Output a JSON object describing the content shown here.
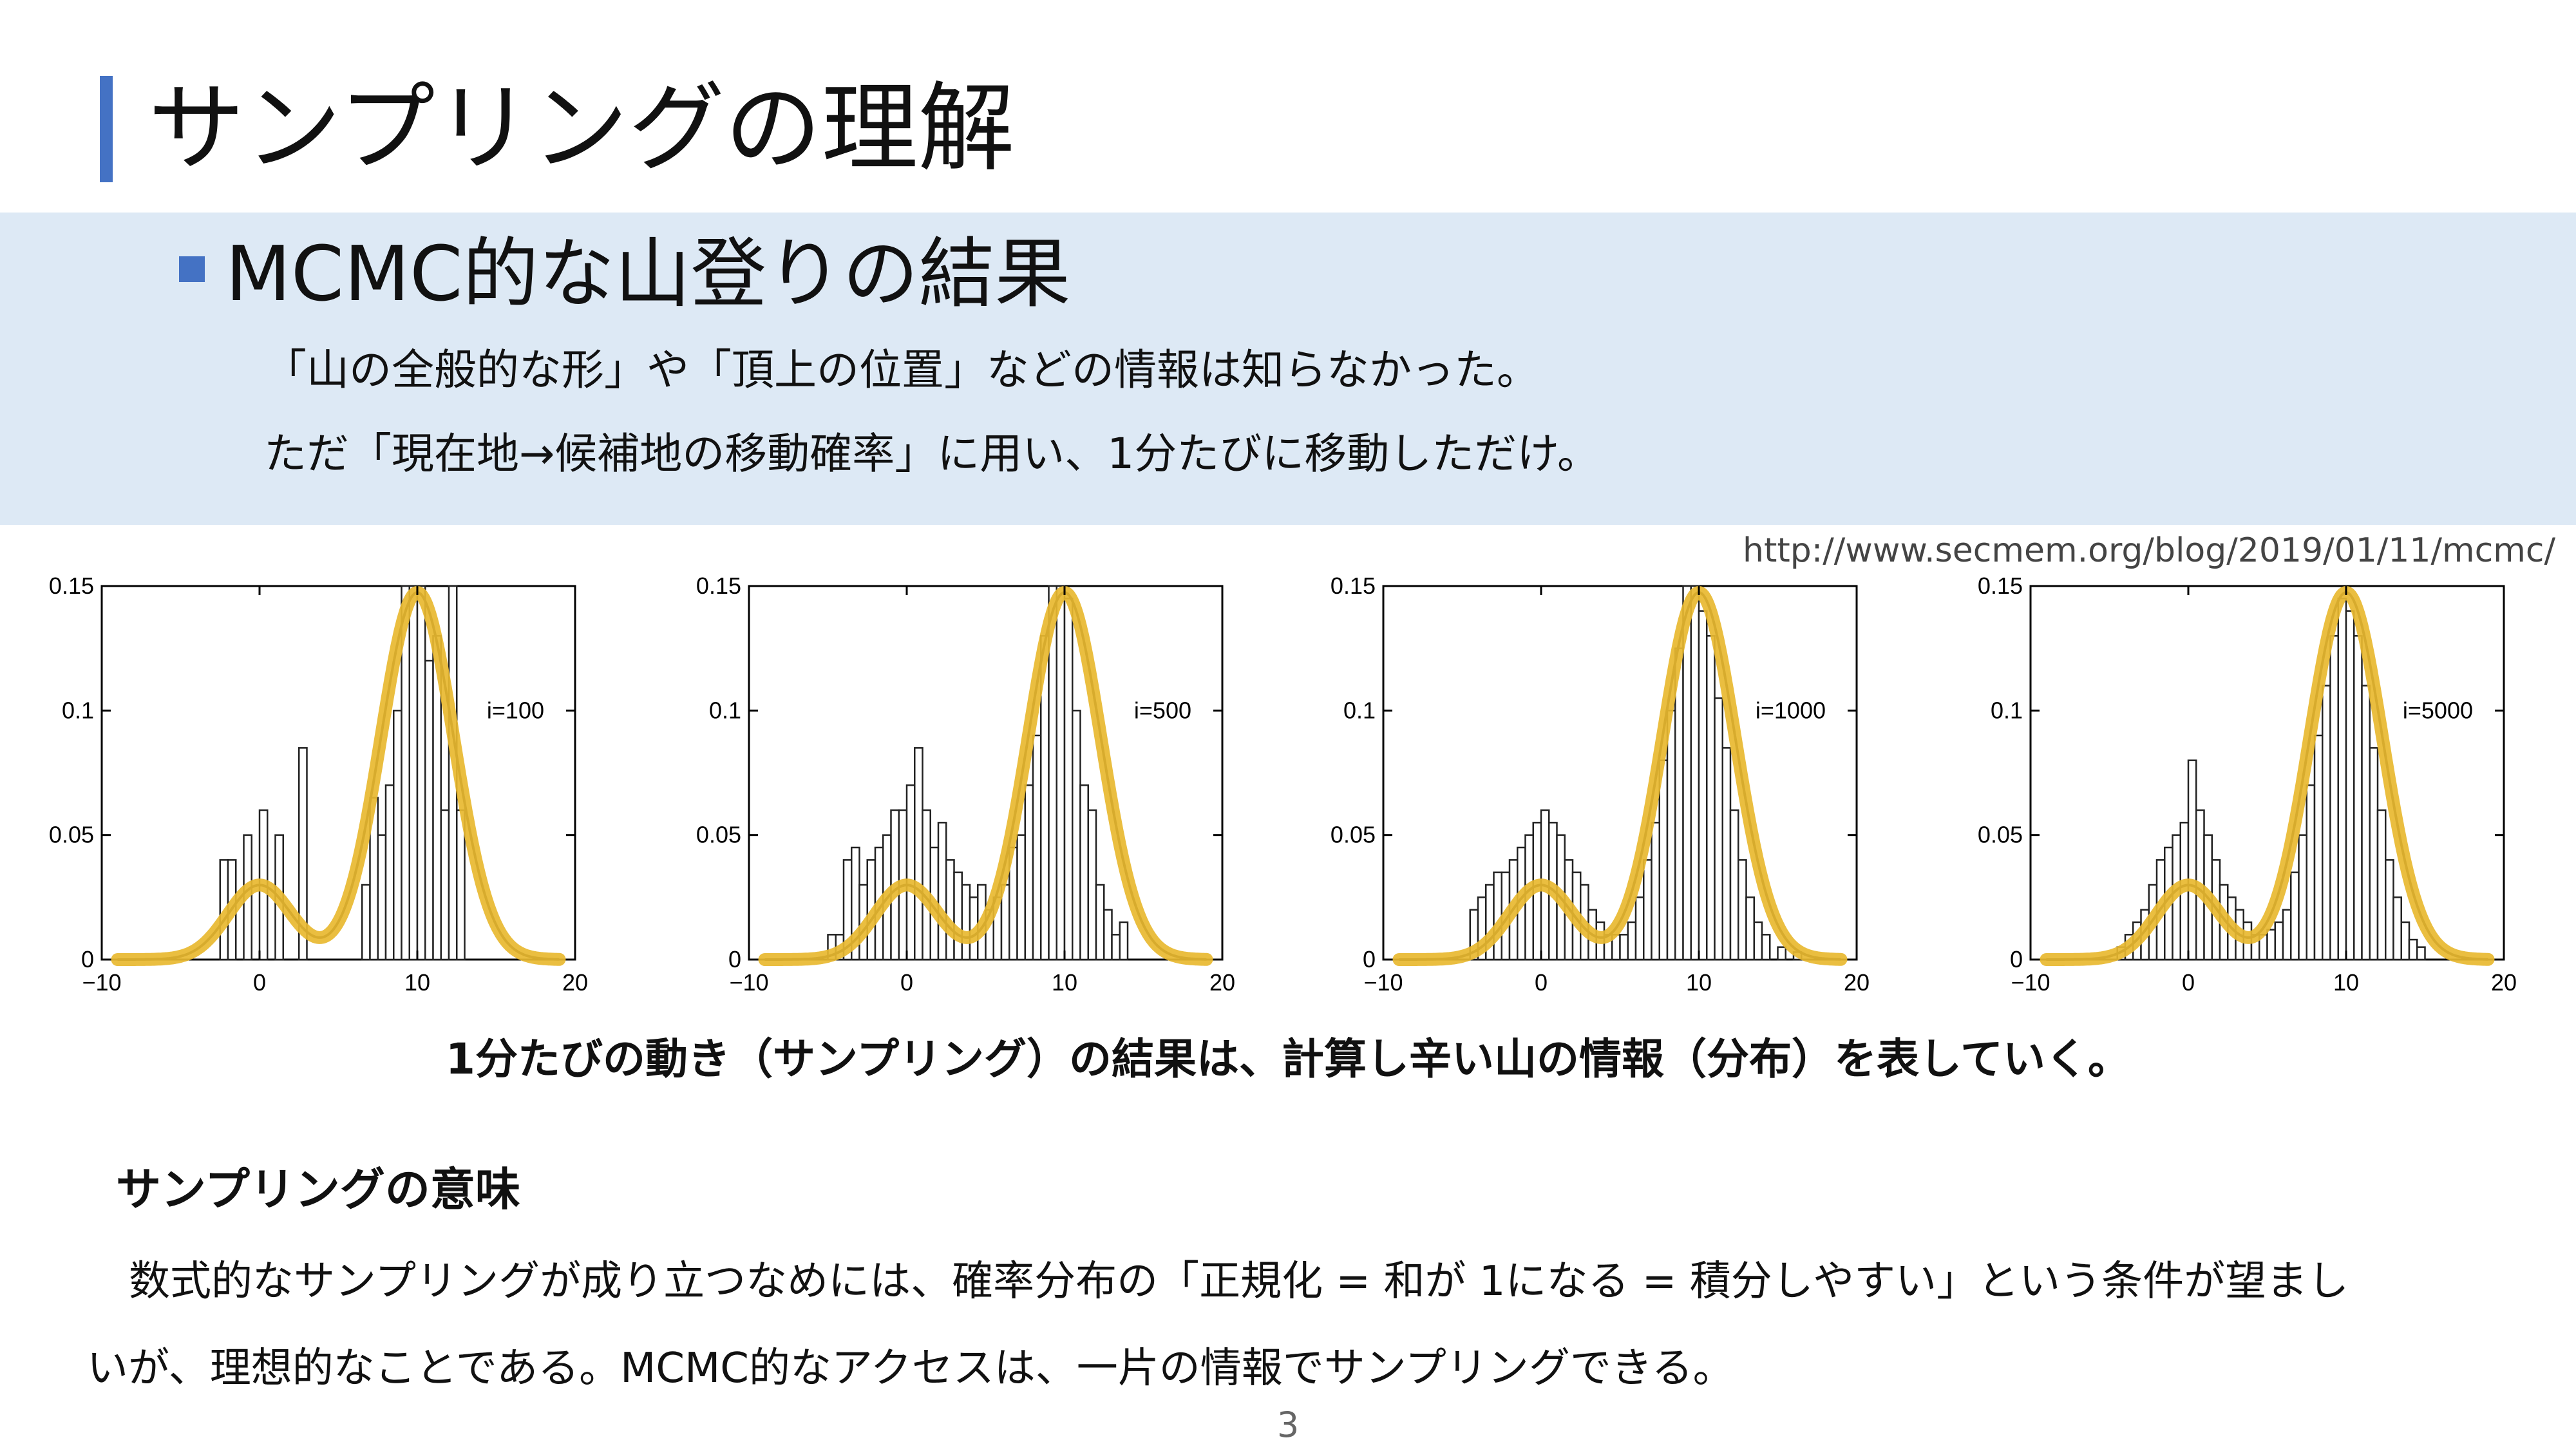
{
  "slide": {
    "title": "サンプリングの理解",
    "bullet_heading": "MCMC的な山登りの結果",
    "lines": [
      "「山の全般的な形」や「頂上の位置」などの情報は知らなかった。",
      "ただ「現在地→候補地の移動確率」に用い、1分たびに移動しただけ。"
    ],
    "source_url": "http://www.secmem.org/blog/2019/01/11/mcmc/",
    "caption": "1分たびの動き（サンプリング）の結果は、計算し辛い山の情報（分布）を表していく。",
    "section_heading": "サンプリングの意味",
    "paragraph_lines": [
      "数式的なサンプリングが成り立つなめには、確率分布の「正規化 = 和が 1になる = 積分しやすい」という条件が望まし",
      "いが、理想的なことである。MCMC的なアクセスは、一片の情報でサンプリングできる。"
    ],
    "page_number": "3",
    "accent_color": "#4472c4",
    "band_color": "#dde9f5"
  },
  "chart_data": [
    {
      "type": "bar",
      "annotation": "i=100",
      "xlim": [
        -10,
        20
      ],
      "ylim": [
        0,
        0.15
      ],
      "xticks": [
        -10,
        0,
        10,
        20
      ],
      "yticks": [
        0,
        0.05,
        0.1,
        0.15
      ],
      "xtick_labels": [
        "−10",
        "0",
        "10",
        "20"
      ],
      "ytick_labels": [
        "0",
        "0.05",
        "0.1",
        "0.15"
      ],
      "bin_width": 0.5,
      "bins": [
        [
          -2.5,
          0.04
        ],
        [
          -2,
          0.04
        ],
        [
          -1,
          0.05
        ],
        [
          0,
          0.06
        ],
        [
          1,
          0.05
        ],
        [
          2.5,
          0.085
        ],
        [
          6.5,
          0.03
        ],
        [
          7,
          0.065
        ],
        [
          7.5,
          0.05
        ],
        [
          8,
          0.07
        ],
        [
          8.5,
          0.1
        ],
        [
          9,
          0.15
        ],
        [
          9.5,
          0.15
        ],
        [
          10,
          0.15
        ],
        [
          10.5,
          0.12
        ],
        [
          11,
          0.13
        ],
        [
          11.5,
          0.06
        ],
        [
          12,
          0.15
        ],
        [
          12.5,
          0.06
        ]
      ],
      "curve": {
        "weights": [
          0.15,
          0.85
        ],
        "means": [
          0,
          10
        ],
        "sds": [
          2,
          2.3
        ],
        "color": "#e8b830"
      }
    },
    {
      "type": "bar",
      "annotation": "i=500",
      "xlim": [
        -10,
        20
      ],
      "ylim": [
        0,
        0.15
      ],
      "xticks": [
        -10,
        0,
        10,
        20
      ],
      "yticks": [
        0,
        0.05,
        0.1,
        0.15
      ],
      "xtick_labels": [
        "−10",
        "0",
        "10",
        "20"
      ],
      "ytick_labels": [
        "0",
        "0.05",
        "0.1",
        "0.15"
      ],
      "bin_width": 0.5,
      "bins": [
        [
          -5,
          0.01
        ],
        [
          -4.5,
          0.01
        ],
        [
          -4,
          0.04
        ],
        [
          -3.5,
          0.045
        ],
        [
          -3,
          0.03
        ],
        [
          -2.5,
          0.04
        ],
        [
          -2,
          0.045
        ],
        [
          -1.5,
          0.05
        ],
        [
          -1,
          0.06
        ],
        [
          -0.5,
          0.06
        ],
        [
          0,
          0.07
        ],
        [
          0.5,
          0.085
        ],
        [
          1,
          0.06
        ],
        [
          1.5,
          0.045
        ],
        [
          2,
          0.055
        ],
        [
          2.5,
          0.04
        ],
        [
          3,
          0.035
        ],
        [
          3.5,
          0.03
        ],
        [
          4,
          0.025
        ],
        [
          4.5,
          0.03
        ],
        [
          5,
          0.02
        ],
        [
          5.5,
          0.025
        ],
        [
          6,
          0.03
        ],
        [
          6.5,
          0.045
        ],
        [
          7,
          0.05
        ],
        [
          7.5,
          0.07
        ],
        [
          8,
          0.09
        ],
        [
          8.5,
          0.13
        ],
        [
          9,
          0.15
        ],
        [
          9.5,
          0.15
        ],
        [
          10,
          0.145
        ],
        [
          10.5,
          0.1
        ],
        [
          11,
          0.07
        ],
        [
          11.5,
          0.06
        ],
        [
          12,
          0.03
        ],
        [
          12.5,
          0.02
        ],
        [
          13,
          0.01
        ],
        [
          13.5,
          0.015
        ]
      ],
      "curve": {
        "weights": [
          0.15,
          0.85
        ],
        "means": [
          0,
          10
        ],
        "sds": [
          2,
          2.3
        ],
        "color": "#e8b830"
      }
    },
    {
      "type": "bar",
      "annotation": "i=1000",
      "xlim": [
        -10,
        20
      ],
      "ylim": [
        0,
        0.15
      ],
      "xticks": [
        -10,
        0,
        10,
        20
      ],
      "yticks": [
        0,
        0.05,
        0.1,
        0.15
      ],
      "xtick_labels": [
        "−10",
        "0",
        "10",
        "20"
      ],
      "ytick_labels": [
        "0",
        "0.05",
        "0.1",
        "0.15"
      ],
      "bin_width": 0.5,
      "bins": [
        [
          -4.5,
          0.02
        ],
        [
          -4,
          0.025
        ],
        [
          -3.5,
          0.03
        ],
        [
          -3,
          0.035
        ],
        [
          -2.5,
          0.035
        ],
        [
          -2,
          0.04
        ],
        [
          -1.5,
          0.045
        ],
        [
          -1,
          0.05
        ],
        [
          -0.5,
          0.055
        ],
        [
          0,
          0.06
        ],
        [
          0.5,
          0.055
        ],
        [
          1,
          0.05
        ],
        [
          1.5,
          0.04
        ],
        [
          2,
          0.035
        ],
        [
          2.5,
          0.03
        ],
        [
          3,
          0.02
        ],
        [
          3.5,
          0.015
        ],
        [
          4,
          0.01
        ],
        [
          4.5,
          0.01
        ],
        [
          5,
          0.01
        ],
        [
          5.5,
          0.015
        ],
        [
          6,
          0.025
        ],
        [
          6.5,
          0.04
        ],
        [
          7,
          0.055
        ],
        [
          7.5,
          0.08
        ],
        [
          8,
          0.1
        ],
        [
          8.5,
          0.125
        ],
        [
          9,
          0.15
        ],
        [
          9.5,
          0.15
        ],
        [
          10,
          0.14
        ],
        [
          10.5,
          0.13
        ],
        [
          11,
          0.105
        ],
        [
          11.5,
          0.085
        ],
        [
          12,
          0.06
        ],
        [
          12.5,
          0.04
        ],
        [
          13,
          0.025
        ],
        [
          13.5,
          0.015
        ],
        [
          14,
          0.01
        ],
        [
          15,
          0.005
        ],
        [
          16,
          0.003
        ]
      ],
      "curve": {
        "weights": [
          0.15,
          0.85
        ],
        "means": [
          0,
          10
        ],
        "sds": [
          2,
          2.3
        ],
        "color": "#e8b830"
      }
    },
    {
      "type": "bar",
      "annotation": "i=5000",
      "xlim": [
        -10,
        20
      ],
      "ylim": [
        0,
        0.15
      ],
      "xticks": [
        -10,
        0,
        10,
        20
      ],
      "yticks": [
        0,
        0.05,
        0.1,
        0.15
      ],
      "xtick_labels": [
        "−10",
        "0",
        "10",
        "20"
      ],
      "ytick_labels": [
        "0",
        "0.05",
        "0.1",
        "0.15"
      ],
      "bin_width": 0.5,
      "bins": [
        [
          -4.5,
          0.005
        ],
        [
          -4,
          0.01
        ],
        [
          -3.5,
          0.015
        ],
        [
          -3,
          0.02
        ],
        [
          -2.5,
          0.03
        ],
        [
          -2,
          0.04
        ],
        [
          -1.5,
          0.045
        ],
        [
          -1,
          0.05
        ],
        [
          -0.5,
          0.055
        ],
        [
          0,
          0.08
        ],
        [
          0.5,
          0.06
        ],
        [
          1,
          0.05
        ],
        [
          1.5,
          0.04
        ],
        [
          2,
          0.03
        ],
        [
          2.5,
          0.025
        ],
        [
          3,
          0.02
        ],
        [
          3.5,
          0.015
        ],
        [
          4,
          0.01
        ],
        [
          4.5,
          0.01
        ],
        [
          5,
          0.012
        ],
        [
          5.5,
          0.015
        ],
        [
          6,
          0.02
        ],
        [
          6.5,
          0.035
        ],
        [
          7,
          0.05
        ],
        [
          7.5,
          0.07
        ],
        [
          8,
          0.09
        ],
        [
          8.5,
          0.11
        ],
        [
          9,
          0.13
        ],
        [
          9.5,
          0.145
        ],
        [
          10,
          0.14
        ],
        [
          10.5,
          0.13
        ],
        [
          11,
          0.11
        ],
        [
          11.5,
          0.085
        ],
        [
          12,
          0.06
        ],
        [
          12.5,
          0.04
        ],
        [
          13,
          0.025
        ],
        [
          13.5,
          0.015
        ],
        [
          14,
          0.008
        ],
        [
          14.5,
          0.005
        ]
      ],
      "curve": {
        "weights": [
          0.15,
          0.85
        ],
        "means": [
          0,
          10
        ],
        "sds": [
          2,
          2.3
        ],
        "color": "#e8b830"
      }
    }
  ]
}
